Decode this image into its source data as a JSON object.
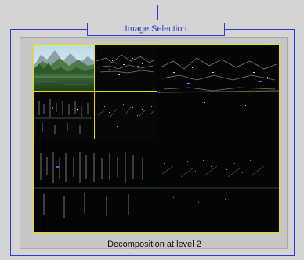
{
  "group": {
    "title": "Image Selection"
  },
  "viewer": {
    "caption": "Decomposition at level 2",
    "decomposition_level": 2,
    "grid_color": "#e8e000",
    "frame_color": "#2a3bd8"
  }
}
